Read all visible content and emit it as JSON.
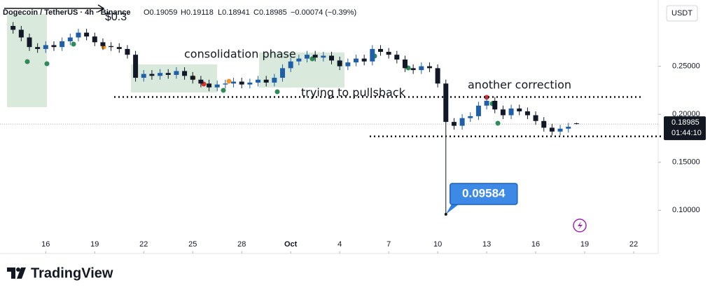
{
  "chart_data": {
    "type": "candlestick",
    "header": {
      "symbol": "Dogecoin / TetherUS · 4h · Binance",
      "open": "O0.19059",
      "high": "H0.19118",
      "low": "L0.18941",
      "close": "C0.18985",
      "change": "−0.00074 (−0.39%)"
    },
    "overlay_text": "$0.3",
    "currency": "USDT",
    "countdown": "01:44:10",
    "brand": "TradingView",
    "annotations": [
      "consolidation phase",
      "trying to pullsback",
      "another correction"
    ],
    "low_callout": 0.09584,
    "last_price": 0.18985,
    "levels": [
      0.218,
      0.177
    ],
    "up_color": "#1f5fa8",
    "down_color": "#111827",
    "xlim": [
      13.2,
      53.5
    ],
    "ylim": [
      0.055,
      0.319
    ],
    "xticks": [
      {
        "value": 16,
        "label": "16"
      },
      {
        "value": 19,
        "label": "19"
      },
      {
        "value": 22,
        "label": "22"
      },
      {
        "value": 25,
        "label": "25"
      },
      {
        "value": 28,
        "label": "28"
      },
      {
        "value": 31,
        "label": "Oct"
      },
      {
        "value": 34,
        "label": "4"
      },
      {
        "value": 37,
        "label": "7"
      },
      {
        "value": 40,
        "label": "10"
      },
      {
        "value": 43,
        "label": "13"
      },
      {
        "value": 46,
        "label": "16"
      },
      {
        "value": 49,
        "label": "19"
      },
      {
        "value": 52,
        "label": "22"
      }
    ],
    "yticks": [
      {
        "value": 0.25,
        "label": "0.25000"
      },
      {
        "value": 0.2,
        "label": "0.20000"
      },
      {
        "value": 0.15,
        "label": "0.15000"
      },
      {
        "value": 0.1,
        "label": "0.10000"
      }
    ],
    "x": [
      14,
      14.5,
      15,
      15.5,
      16,
      16.5,
      17,
      17.5,
      18,
      18.5,
      19,
      19.5,
      20,
      20.5,
      21,
      21.5,
      22,
      22.5,
      23,
      23.5,
      24,
      24.5,
      25,
      25.5,
      26,
      26.5,
      27,
      27.5,
      28,
      28.5,
      29,
      29.5,
      30,
      30.5,
      31,
      31.5,
      32,
      32.5,
      33,
      33.5,
      34,
      34.5,
      35,
      35.5,
      36,
      36.5,
      37,
      37.5,
      38,
      38.5,
      39,
      39.5,
      40,
      40.5,
      41,
      41.5,
      42,
      42.5,
      43,
      43.5,
      44,
      44.5,
      45,
      45.5,
      46,
      46.5,
      47,
      47.5,
      48,
      48.5
    ],
    "open": [
      0.292,
      0.288,
      0.28,
      0.27,
      0.268,
      0.272,
      0.27,
      0.276,
      0.28,
      0.285,
      0.281,
      0.275,
      0.271,
      0.27,
      0.268,
      0.262,
      0.238,
      0.242,
      0.24,
      0.243,
      0.241,
      0.245,
      0.24,
      0.236,
      0.232,
      0.228,
      0.231,
      0.232,
      0.234,
      0.231,
      0.233,
      0.236,
      0.233,
      0.238,
      0.248,
      0.255,
      0.258,
      0.262,
      0.259,
      0.261,
      0.256,
      0.25,
      0.254,
      0.258,
      0.255,
      0.268,
      0.265,
      0.262,
      0.257,
      0.248,
      0.246,
      0.25,
      0.248,
      0.232,
      0.192,
      0.188,
      0.196,
      0.198,
      0.209,
      0.214,
      0.205,
      0.199,
      0.206,
      0.203,
      0.199,
      0.193,
      0.186,
      0.182,
      0.185,
      0.19059
    ],
    "high": [
      0.296,
      0.292,
      0.284,
      0.274,
      0.276,
      0.276,
      0.28,
      0.284,
      0.289,
      0.289,
      0.285,
      0.279,
      0.275,
      0.274,
      0.272,
      0.266,
      0.246,
      0.246,
      0.247,
      0.247,
      0.249,
      0.249,
      0.244,
      0.24,
      0.236,
      0.235,
      0.236,
      0.238,
      0.238,
      0.237,
      0.24,
      0.24,
      0.242,
      0.252,
      0.259,
      0.262,
      0.266,
      0.266,
      0.265,
      0.265,
      0.26,
      0.258,
      0.262,
      0.262,
      0.272,
      0.272,
      0.269,
      0.266,
      0.261,
      0.252,
      0.254,
      0.254,
      0.252,
      0.236,
      0.196,
      0.2,
      0.202,
      0.213,
      0.218,
      0.218,
      0.209,
      0.21,
      0.21,
      0.207,
      0.203,
      0.197,
      0.19,
      0.189,
      0.191,
      0.19118
    ],
    "low": [
      0.284,
      0.276,
      0.266,
      0.264,
      0.264,
      0.266,
      0.266,
      0.272,
      0.276,
      0.277,
      0.271,
      0.267,
      0.266,
      0.264,
      0.258,
      0.234,
      0.234,
      0.236,
      0.236,
      0.237,
      0.237,
      0.236,
      0.232,
      0.228,
      0.224,
      0.224,
      0.227,
      0.228,
      0.227,
      0.227,
      0.229,
      0.229,
      0.229,
      0.234,
      0.244,
      0.251,
      0.254,
      0.255,
      0.255,
      0.252,
      0.246,
      0.246,
      0.25,
      0.251,
      0.251,
      0.261,
      0.258,
      0.253,
      0.244,
      0.242,
      0.242,
      0.244,
      0.228,
      0.09584,
      0.184,
      0.184,
      0.192,
      0.194,
      0.205,
      0.201,
      0.195,
      0.195,
      0.199,
      0.195,
      0.189,
      0.182,
      0.178,
      0.178,
      0.181,
      0.18941
    ],
    "close": [
      0.288,
      0.28,
      0.27,
      0.268,
      0.272,
      0.27,
      0.276,
      0.28,
      0.285,
      0.281,
      0.275,
      0.271,
      0.27,
      0.268,
      0.262,
      0.238,
      0.242,
      0.24,
      0.243,
      0.241,
      0.245,
      0.24,
      0.236,
      0.232,
      0.228,
      0.231,
      0.232,
      0.234,
      0.231,
      0.233,
      0.236,
      0.233,
      0.238,
      0.248,
      0.255,
      0.258,
      0.262,
      0.259,
      0.261,
      0.256,
      0.25,
      0.254,
      0.258,
      0.255,
      0.268,
      0.265,
      0.262,
      0.257,
      0.248,
      0.246,
      0.25,
      0.248,
      0.232,
      0.192,
      0.188,
      0.196,
      0.198,
      0.209,
      0.214,
      0.205,
      0.199,
      0.206,
      0.203,
      0.199,
      0.193,
      0.186,
      0.182,
      0.185,
      0.187,
      0.18985
    ]
  }
}
